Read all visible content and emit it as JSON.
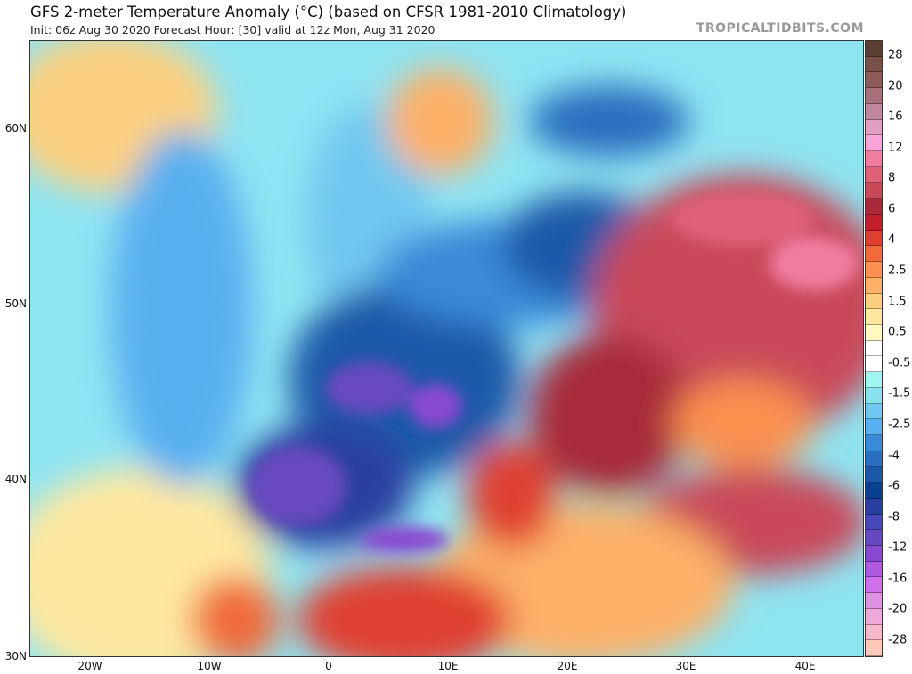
{
  "header": {
    "title": "GFS 2-meter Temperature Anomaly (°C) (based on CFSR 1981-2010 Climatology)",
    "subtitle": "Init: 06z Aug 30 2020   Forecast Hour: [30]   valid at 12z Mon, Aug 31 2020",
    "brand": "TROPICALTIDBITS.COM"
  },
  "axes": {
    "lat_labels": [
      "60N",
      "50N",
      "40N",
      "30N"
    ],
    "lon_labels": [
      "20W",
      "10W",
      "0",
      "10E",
      "20E",
      "30E",
      "40E"
    ]
  },
  "colorbar": {
    "labels": [
      "28",
      "20",
      "16",
      "12",
      "8",
      "6",
      "4",
      "2.5",
      "1.5",
      "0.5",
      "-0.5",
      "-1.5",
      "-2.5",
      "-4",
      "-6",
      "-8",
      "-12",
      "-16",
      "-20",
      "-28"
    ],
    "colors": [
      "#5c3f33",
      "#7a5048",
      "#8e5a5a",
      "#a8707a",
      "#c287a0",
      "#e39ec3",
      "#f9a3d8",
      "#f07da0",
      "#e06278",
      "#c9485a",
      "#a82a3a",
      "#c41e2a",
      "#e04030",
      "#f06a3a",
      "#fb9050",
      "#fdb068",
      "#fdd080",
      "#fee8a0",
      "#fff8c0",
      "#ffffff",
      "#ffffff",
      "#a0f5f0",
      "#88e0f0",
      "#70c8f0",
      "#58b0f0",
      "#3a8ad8",
      "#2a6ec0",
      "#1a58a8",
      "#0a4090",
      "#2a40a0",
      "#4848b8",
      "#6848c0",
      "#8848d0",
      "#b058e0",
      "#d070e8",
      "#e090e0",
      "#f0a8d8",
      "#f8b8c8",
      "#ffc8b8"
    ]
  }
}
